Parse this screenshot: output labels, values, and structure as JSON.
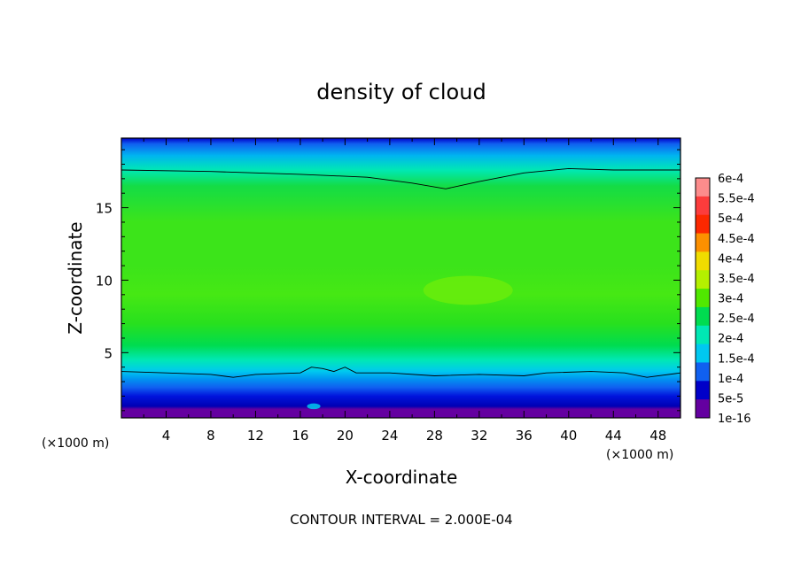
{
  "chart_data": {
    "type": "heatmap",
    "title": "density of cloud",
    "xlabel": "X-coordinate",
    "ylabel": "Z-coordinate",
    "x_unit": "(×1000 m)",
    "xlim": [
      0,
      50
    ],
    "ylim": [
      0.5,
      19.8
    ],
    "x_ticks": [
      4,
      8,
      12,
      16,
      20,
      24,
      28,
      32,
      36,
      40,
      44,
      48
    ],
    "y_ticks": [
      5,
      10,
      15
    ],
    "footer": "CONTOUR INTERVAL = 2.000E-04",
    "colorbar": {
      "labels": [
        "6e-4",
        "5.5e-4",
        "5e-4",
        "4.5e-4",
        "4e-4",
        "3.5e-4",
        "3e-4",
        "2.5e-4",
        "2e-4",
        "1.5e-4",
        "1e-4",
        "5e-5",
        "1e-16"
      ],
      "colors": [
        "#fc8c8c",
        "#fc3c3c",
        "#fc2800",
        "#fc9000",
        "#f0dc00",
        "#b4f000",
        "#50e800",
        "#00dc50",
        "#00e8b4",
        "#00c8f0",
        "#1060f0",
        "#0000c8",
        "#6400a0"
      ]
    },
    "field_levels": [
      {
        "z": 0.5,
        "color": "#6400a0"
      },
      {
        "z": 1.1,
        "color": "#6400a0"
      },
      {
        "z": 1.3,
        "color": "#0000b4"
      },
      {
        "z": 2.0,
        "color": "#0014dc"
      },
      {
        "z": 2.6,
        "color": "#1060f0"
      },
      {
        "z": 3.2,
        "color": "#0096f0"
      },
      {
        "z": 3.7,
        "color": "#00c8f0"
      },
      {
        "z": 4.5,
        "color": "#00e8b4"
      },
      {
        "z": 5.5,
        "color": "#00dc50"
      },
      {
        "z": 7.0,
        "color": "#28e01e"
      },
      {
        "z": 9.0,
        "color": "#46e814"
      },
      {
        "z": 11.0,
        "color": "#3ce41a"
      },
      {
        "z": 14.0,
        "color": "#3ce41a"
      },
      {
        "z": 16.5,
        "color": "#14dc46"
      },
      {
        "z": 17.6,
        "color": "#00e8b4"
      },
      {
        "z": 18.6,
        "color": "#00b4f0"
      },
      {
        "z": 19.4,
        "color": "#1060f0"
      },
      {
        "z": 19.8,
        "color": "#0000c8"
      }
    ],
    "contour_lines": [
      {
        "level": "2e-4",
        "points": [
          [
            0,
            17.6
          ],
          [
            8,
            17.5
          ],
          [
            16,
            17.3
          ],
          [
            22,
            17.1
          ],
          [
            26,
            16.7
          ],
          [
            29,
            16.3
          ],
          [
            32,
            16.8
          ],
          [
            36,
            17.4
          ],
          [
            40,
            17.7
          ],
          [
            44,
            17.6
          ],
          [
            50,
            17.6
          ]
        ]
      },
      {
        "level": "2e-4",
        "points": [
          [
            0,
            3.7
          ],
          [
            4,
            3.6
          ],
          [
            8,
            3.5
          ],
          [
            10,
            3.3
          ],
          [
            12,
            3.5
          ],
          [
            16,
            3.6
          ],
          [
            17,
            4.0
          ],
          [
            18,
            3.9
          ],
          [
            19,
            3.7
          ],
          [
            20,
            4.0
          ],
          [
            21,
            3.6
          ],
          [
            24,
            3.6
          ],
          [
            28,
            3.4
          ],
          [
            32,
            3.5
          ],
          [
            36,
            3.4
          ],
          [
            38,
            3.6
          ],
          [
            42,
            3.7
          ],
          [
            45,
            3.6
          ],
          [
            47,
            3.3
          ],
          [
            50,
            3.6
          ]
        ]
      }
    ],
    "highlight_patches": [
      {
        "x": 31,
        "z": 9.3,
        "rx": 4,
        "rz": 1.0,
        "color": "#6aec0c"
      },
      {
        "x": 17.2,
        "z": 1.3,
        "rx": 0.6,
        "rz": 0.2,
        "color": "#00c8f0"
      }
    ]
  }
}
